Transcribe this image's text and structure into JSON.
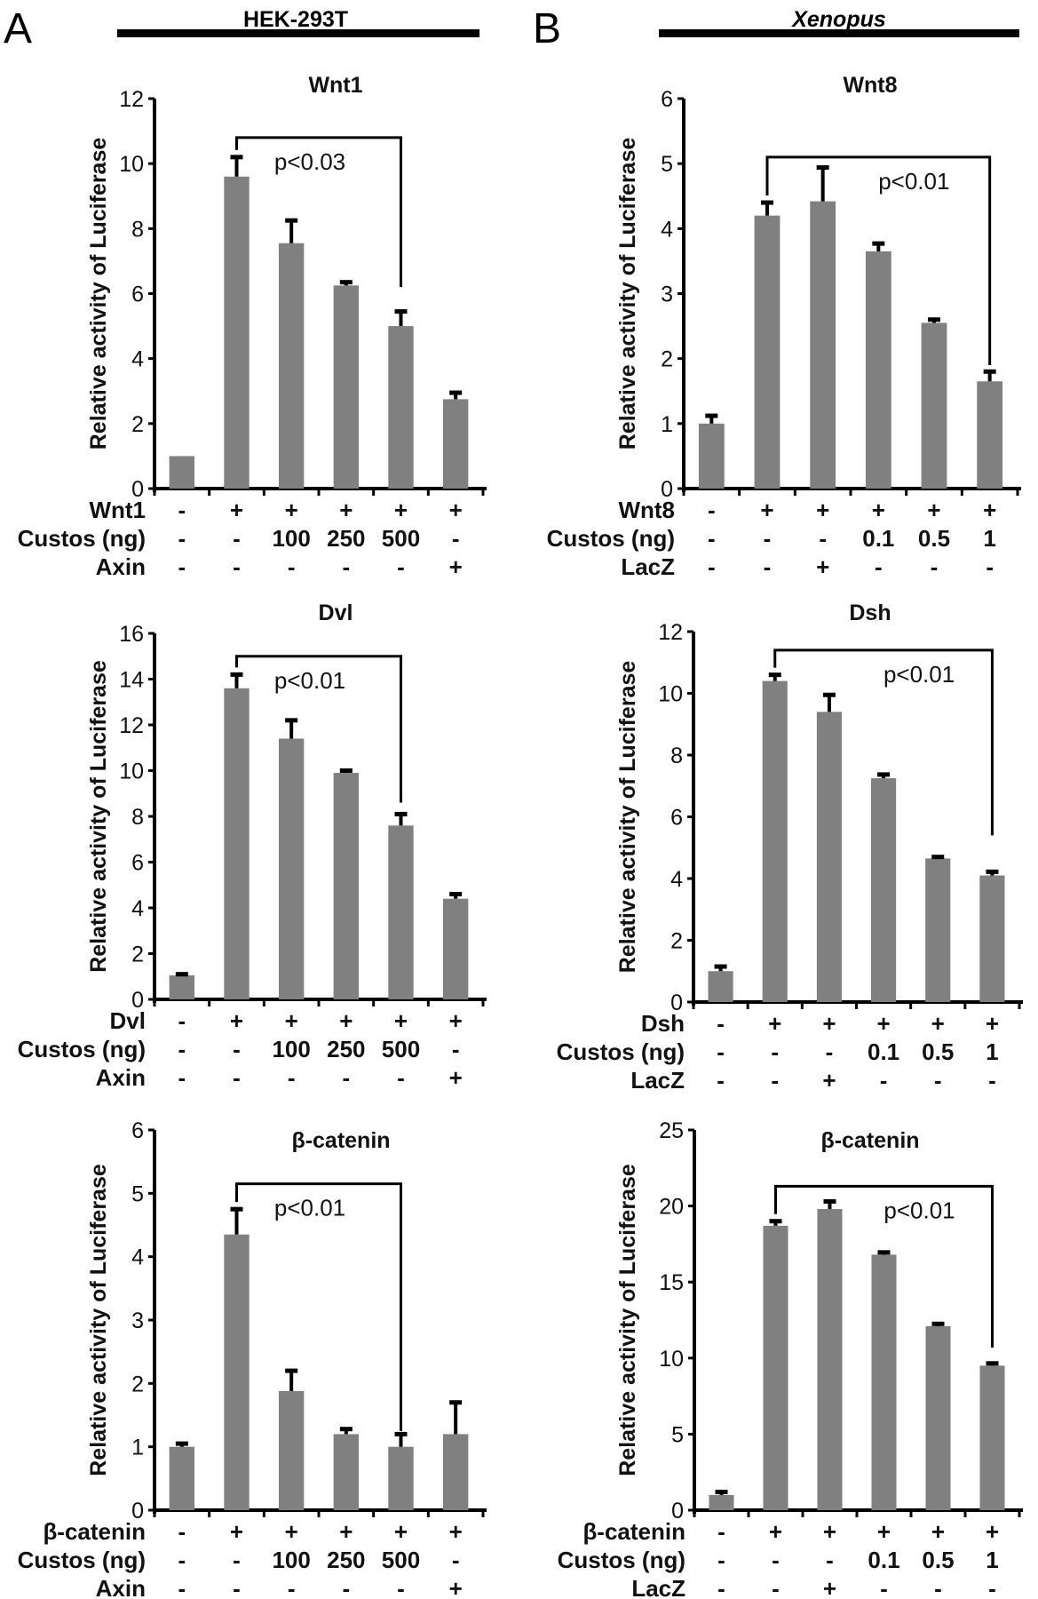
{
  "panels": [
    {
      "letter": "A",
      "group": "HEK-293T",
      "group_italic": false
    },
    {
      "letter": "B",
      "group": "Xenopus",
      "group_italic": true
    }
  ],
  "colors": {
    "bar": "#808080",
    "axis": "#000000",
    "error": "#000000"
  },
  "chart_data": [
    {
      "type": "bar",
      "panel": "A",
      "title": "Wnt1",
      "ylabel": "Relative activity of Luciferase",
      "ylim": [
        0,
        12
      ],
      "yticks": [
        0,
        2,
        4,
        6,
        8,
        10,
        12
      ],
      "values": [
        1.0,
        9.6,
        7.55,
        6.25,
        5.0,
        2.75
      ],
      "errors": [
        0,
        0.6,
        0.7,
        0.1,
        0.45,
        0.2
      ],
      "significance": {
        "from": 1,
        "to": 4,
        "label": "p<0.03",
        "level": 10.8,
        "to_leg_end": 6.2
      },
      "conditions": [
        {
          "label": "Wnt1",
          "values": [
            "-",
            "+",
            "+",
            "+",
            "+",
            "+"
          ]
        },
        {
          "label": "Custos (ng)",
          "values": [
            "-",
            "-",
            "100",
            "250",
            "500",
            "-"
          ]
        },
        {
          "label": "Axin",
          "values": [
            "-",
            "-",
            "-",
            "-",
            "-",
            "+"
          ]
        }
      ]
    },
    {
      "type": "bar",
      "panel": "A",
      "title": "Dvl",
      "ylabel": "Relative activity of Luciferase",
      "ylim": [
        0,
        16
      ],
      "yticks": [
        0,
        2,
        4,
        6,
        8,
        10,
        12,
        14,
        16
      ],
      "values": [
        1.05,
        13.6,
        11.4,
        9.9,
        7.6,
        4.4
      ],
      "errors": [
        0.05,
        0.6,
        0.8,
        0.1,
        0.5,
        0.2
      ],
      "significance": {
        "from": 1,
        "to": 4,
        "label": "p<0.01",
        "level": 15.0,
        "to_leg_end": 8.6
      },
      "conditions": [
        {
          "label": "Dvl",
          "values": [
            "-",
            "+",
            "+",
            "+",
            "+",
            "+"
          ]
        },
        {
          "label": "Custos (ng)",
          "values": [
            "-",
            "-",
            "100",
            "250",
            "500",
            "-"
          ]
        },
        {
          "label": "Axin",
          "values": [
            "-",
            "-",
            "-",
            "-",
            "-",
            "+"
          ]
        }
      ]
    },
    {
      "type": "bar",
      "panel": "A",
      "title": "β-catenin",
      "ylabel": "Relative activity of Luciferase",
      "ylim": [
        0,
        6
      ],
      "yticks": [
        0,
        1,
        2,
        3,
        4,
        5,
        6
      ],
      "values": [
        1.0,
        4.35,
        1.88,
        1.2,
        1.0,
        1.2
      ],
      "errors": [
        0.05,
        0.4,
        0.32,
        0.08,
        0.2,
        0.5
      ],
      "significance": {
        "from": 1,
        "to": 4,
        "label": "p<0.01",
        "level": 5.15,
        "to_leg_end": 1.25
      },
      "conditions": [
        {
          "label": "β-catenin",
          "values": [
            "-",
            "+",
            "+",
            "+",
            "+",
            "+"
          ]
        },
        {
          "label": "Custos (ng)",
          "values": [
            "-",
            "-",
            "100",
            "250",
            "500",
            "-"
          ]
        },
        {
          "label": "Axin",
          "values": [
            "-",
            "-",
            "-",
            "-",
            "-",
            "+"
          ]
        }
      ]
    },
    {
      "type": "bar",
      "panel": "B",
      "title": "Wnt8",
      "ylabel": "Relative activity of Luciferase",
      "ylim": [
        0,
        6
      ],
      "yticks": [
        0,
        1,
        2,
        3,
        4,
        5,
        6
      ],
      "values": [
        1.0,
        4.2,
        4.42,
        3.65,
        2.55,
        1.65
      ],
      "errors": [
        0.12,
        0.2,
        0.52,
        0.12,
        0.05,
        0.15
      ],
      "significance": {
        "from": 1,
        "to": 5,
        "label": "p<0.01",
        "level": 5.1,
        "to_leg_end": 1.9
      },
      "conditions": [
        {
          "label": "Wnt8",
          "values": [
            "-",
            "+",
            "+",
            "+",
            "+",
            "+"
          ]
        },
        {
          "label": "Custos (ng)",
          "values": [
            "-",
            "-",
            "-",
            "0.1",
            "0.5",
            "1"
          ]
        },
        {
          "label": "LacZ",
          "values": [
            "-",
            "-",
            "+",
            "-",
            "-",
            "-"
          ]
        }
      ]
    },
    {
      "type": "bar",
      "panel": "B",
      "title": "Dsh",
      "ylabel": "Relative activity of Luciferase",
      "ylim": [
        0,
        12
      ],
      "yticks": [
        0,
        2,
        4,
        6,
        8,
        10,
        12
      ],
      "values": [
        1.0,
        10.4,
        9.4,
        7.25,
        4.65,
        4.1
      ],
      "errors": [
        0.15,
        0.2,
        0.55,
        0.12,
        0.05,
        0.12
      ],
      "significance": {
        "from": 1,
        "to": 5,
        "label": "p<0.01",
        "level": 11.4,
        "to_leg_end": 5.4
      },
      "conditions": [
        {
          "label": "Dsh",
          "values": [
            "-",
            "+",
            "+",
            "+",
            "+",
            "+"
          ]
        },
        {
          "label": "Custos (ng)",
          "values": [
            "-",
            "-",
            "-",
            "0.1",
            "0.5",
            "1"
          ]
        },
        {
          "label": "LacZ",
          "values": [
            "-",
            "-",
            "+",
            "-",
            "-",
            "-"
          ]
        }
      ]
    },
    {
      "type": "bar",
      "panel": "B",
      "title": "β-catenin",
      "ylabel": "Relative activity of Luciferase",
      "ylim": [
        0,
        25
      ],
      "yticks": [
        0,
        5,
        10,
        15,
        20,
        25
      ],
      "values": [
        1.0,
        18.7,
        19.8,
        16.8,
        12.1,
        9.5
      ],
      "errors": [
        0.2,
        0.3,
        0.5,
        0.15,
        0.15,
        0.15
      ],
      "significance": {
        "from": 1,
        "to": 5,
        "label": "p<0.01",
        "level": 21.3,
        "to_leg_end": 10.7
      },
      "conditions": [
        {
          "label": "β-catenin",
          "values": [
            "-",
            "+",
            "+",
            "+",
            "+",
            "+"
          ]
        },
        {
          "label": "Custos (ng)",
          "values": [
            "-",
            "-",
            "-",
            "0.1",
            "0.5",
            "1"
          ]
        },
        {
          "label": "LacZ",
          "values": [
            "-",
            "-",
            "+",
            "-",
            "-",
            "-"
          ]
        }
      ]
    }
  ]
}
